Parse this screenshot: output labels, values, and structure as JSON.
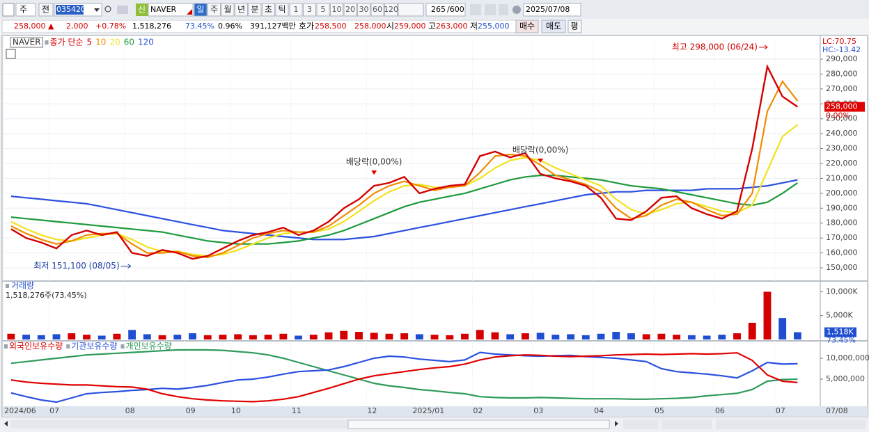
{
  "toolbar": {
    "period": "주",
    "prev": "전",
    "code": "035420",
    "name": "NAVER",
    "new_badge": "신",
    "intervals": [
      "일",
      "주",
      "월",
      "년",
      "분",
      "초",
      "틱"
    ],
    "minutes": [
      "1",
      "3",
      "5",
      "10",
      "20",
      "30",
      "60",
      "120"
    ],
    "count": "265",
    "max_count": "/600",
    "date": "2025/07/08"
  },
  "quote": {
    "price": "258,000 ▲",
    "change": "2,000",
    "change_pct": "+0.78%",
    "volume": "1,518,276",
    "volume_ratio": "73.45%",
    "turnover": "0.96%",
    "amount": "391,127백만",
    "ask_label": "호가",
    "ask": "258,500",
    "bid": "258,000",
    "open_label": "시",
    "open": "259,000",
    "high_label": "고",
    "high": "263,000",
    "low_label": "저",
    "low": "255,000",
    "buy": "매수",
    "sell": "매도",
    "avg": "평"
  },
  "chart_data": [
    {
      "type": "line",
      "name": "NAVER",
      "legend_prefix": "종가 단순",
      "series": [
        {
          "name": "5",
          "color": "#d40000",
          "values": [
            176000,
            170000,
            167000,
            163000,
            172000,
            175000,
            172000,
            174000,
            160000,
            158000,
            162000,
            160000,
            156000,
            158000,
            163000,
            168000,
            172000,
            174000,
            177000,
            172000,
            175000,
            181000,
            190000,
            196000,
            205000,
            207000,
            211000,
            200000,
            203000,
            205000,
            206000,
            225000,
            228000,
            224000,
            227000,
            213000,
            210000,
            208000,
            205000,
            197000,
            183000,
            182000,
            188000,
            197000,
            198000,
            190000,
            186000,
            183000,
            188000,
            230000,
            285000,
            265000,
            258000
          ]
        },
        {
          "name": "10",
          "color": "#f08c00",
          "values": [
            178000,
            173000,
            169000,
            166000,
            168000,
            172000,
            173000,
            173000,
            166000,
            160000,
            160000,
            161000,
            158000,
            157000,
            160000,
            165000,
            170000,
            173000,
            175000,
            174000,
            174000,
            178000,
            185000,
            192000,
            200000,
            205000,
            208000,
            205000,
            202000,
            204000,
            205000,
            214000,
            225000,
            226000,
            225000,
            219000,
            212000,
            209000,
            206000,
            201000,
            190000,
            183000,
            185000,
            192000,
            196000,
            194000,
            189000,
            185000,
            186000,
            200000,
            255000,
            275000,
            262000
          ]
        },
        {
          "name": "20",
          "color": "#f2e21a",
          "values": [
            181000,
            176000,
            172000,
            169000,
            168000,
            170000,
            172000,
            173000,
            169000,
            164000,
            161000,
            161000,
            159000,
            158000,
            159000,
            162000,
            166000,
            170000,
            173000,
            174000,
            174000,
            176000,
            181000,
            188000,
            195000,
            201000,
            205000,
            206000,
            204000,
            204000,
            205000,
            210000,
            217000,
            222000,
            224000,
            222000,
            217000,
            213000,
            209000,
            205000,
            196000,
            189000,
            186000,
            189000,
            193000,
            194000,
            191000,
            188000,
            187000,
            192000,
            215000,
            238000,
            246000
          ]
        },
        {
          "name": "60",
          "color": "#1e9a3c",
          "values": [
            184000,
            183000,
            182000,
            181000,
            180000,
            179000,
            178000,
            177000,
            176000,
            175000,
            174000,
            172000,
            170000,
            168000,
            167000,
            166000,
            166000,
            166000,
            167000,
            168000,
            170000,
            172000,
            175000,
            179000,
            183000,
            187000,
            191000,
            194000,
            196000,
            198000,
            200000,
            203000,
            206000,
            209000,
            211000,
            212000,
            212000,
            211000,
            210000,
            209000,
            207000,
            205000,
            204000,
            203000,
            201000,
            199000,
            197000,
            195000,
            193000,
            192000,
            194000,
            200000,
            207000
          ]
        },
        {
          "name": "120",
          "color": "#2a50e0",
          "values": [
            198000,
            197000,
            196000,
            195000,
            194000,
            193000,
            191000,
            189000,
            187000,
            185000,
            183000,
            181000,
            179000,
            177000,
            175000,
            174000,
            173000,
            172000,
            171000,
            170000,
            169000,
            169000,
            169000,
            170000,
            171000,
            173000,
            175000,
            177000,
            179000,
            181000,
            183000,
            185000,
            187000,
            189000,
            191000,
            193000,
            195000,
            197000,
            199000,
            200000,
            201000,
            201000,
            202000,
            202000,
            202000,
            202000,
            203000,
            203000,
            203000,
            204000,
            205000,
            207000,
            209000
          ]
        }
      ],
      "ylim": [
        141600,
        304000
      ],
      "yticks": [
        {
          "value": 150000,
          "label": "150,000"
        },
        {
          "value": 160000,
          "label": "160,000"
        },
        {
          "value": 170000,
          "label": "170,000"
        },
        {
          "value": 180000,
          "label": "180,000"
        },
        {
          "value": 190000,
          "label": "190,000"
        },
        {
          "value": 200000,
          "label": "200,000"
        },
        {
          "value": 210000,
          "label": "210,000"
        },
        {
          "value": 220000,
          "label": "220,000"
        },
        {
          "value": 230000,
          "label": "230,000"
        },
        {
          "value": 240000,
          "label": "240,000"
        },
        {
          "value": 250000,
          "label": "250,000"
        },
        {
          "value": 260000,
          "label": "260,000"
        },
        {
          "value": 270000,
          "label": "270,000"
        },
        {
          "value": 280000,
          "label": "280,000"
        },
        {
          "value": 290000,
          "label": "290,000"
        }
      ],
      "grid": true,
      "high_annotation": {
        "text": "최고 298,000 (06/24)",
        "x": 50,
        "value": 298000
      },
      "low_annotation": {
        "text": "최저 151,100 (08/05)",
        "x": 8,
        "value": 151100
      },
      "events": [
        {
          "text": "배당락(0,00%)",
          "x": 24
        },
        {
          "text": "배당락(0,00%)",
          "x": 35
        }
      ],
      "indicator_labels": [
        "LC:70.75",
        "HC:-13.42"
      ],
      "last_label": "258,000",
      "last_pct": "0.00%"
    },
    {
      "type": "bar",
      "title": "거래량",
      "subtitle": "1,518,276주(73.45%)",
      "up_color": "#d40000",
      "down_color": "#1f4fd0",
      "values": [
        1200000,
        1000000,
        900000,
        1100000,
        1300000,
        1000000,
        800000,
        1200000,
        2000000,
        1100000,
        900000,
        1000000,
        1300000,
        900000,
        1000000,
        1100000,
        900000,
        1000000,
        1200000,
        800000,
        1000000,
        1500000,
        1800000,
        1600000,
        1400000,
        1200000,
        1300000,
        1100000,
        1000000,
        900000,
        1200000,
        2000000,
        1500000,
        1100000,
        1300000,
        1400000,
        1000000,
        1100000,
        900000,
        1200000,
        1600000,
        1300000,
        1100000,
        1200000,
        1000000,
        900000,
        800000,
        1000000,
        1300000,
        3500000,
        10000000,
        4500000,
        1518276
      ],
      "ylim": [
        0,
        12100000
      ],
      "yticks": [
        {
          "value": 5000000,
          "label": "5,000K"
        },
        {
          "value": 10000000,
          "label": "10,000K"
        }
      ],
      "last_label": "1,518K",
      "last_pct": "73.45%"
    },
    {
      "type": "line",
      "series": [
        {
          "name": "외국인보유수량",
          "color": "#e00000",
          "values": [
            4800000,
            4300000,
            4000000,
            3800000,
            3600000,
            3600000,
            3400000,
            3200000,
            3100000,
            2600000,
            1500000,
            800000,
            300000,
            0,
            -200000,
            -300000,
            -400000,
            -200000,
            200000,
            800000,
            1800000,
            2800000,
            3900000,
            5000000,
            5800000,
            6300000,
            6800000,
            7300000,
            7700000,
            8000000,
            8600000,
            9600000,
            10300000,
            10600000,
            10800000,
            10700000,
            10500000,
            10400000,
            10500000,
            10600000,
            10800000,
            10900000,
            11000000,
            10900000,
            11000000,
            11100000,
            11000000,
            11100000,
            11300000,
            9500000,
            6000000,
            4500000,
            4200000
          ]
        },
        {
          "name": "기관보유수량",
          "color": "#2a50e0",
          "values": [
            1700000,
            800000,
            0,
            -500000,
            500000,
            1500000,
            1800000,
            2000000,
            2300000,
            2500000,
            2800000,
            2600000,
            3000000,
            3500000,
            4200000,
            4800000,
            5000000,
            5500000,
            6200000,
            6800000,
            7000000,
            7200000,
            8000000,
            9000000,
            10000000,
            10500000,
            10300000,
            9800000,
            9500000,
            9200000,
            9600000,
            11400000,
            11000000,
            10800000,
            10600000,
            10500000,
            10600000,
            10700000,
            10400000,
            10200000,
            10000000,
            9600000,
            9200000,
            7500000,
            6800000,
            6500000,
            6200000,
            5800000,
            5300000,
            7000000,
            9000000,
            8600000,
            8700000
          ]
        },
        {
          "name": "개인보유수량",
          "color": "#2e9a5a",
          "values": [
            8800000,
            9200000,
            9600000,
            10000000,
            10400000,
            10800000,
            11000000,
            11200000,
            11400000,
            11600000,
            11800000,
            12000000,
            12000000,
            12000000,
            11900000,
            11600000,
            11300000,
            10800000,
            10000000,
            9000000,
            8000000,
            7000000,
            6000000,
            5000000,
            4000000,
            3400000,
            3000000,
            2500000,
            2200000,
            1800000,
            1500000,
            800000,
            600000,
            500000,
            500000,
            600000,
            500000,
            400000,
            300000,
            300000,
            300000,
            200000,
            200000,
            300000,
            400000,
            600000,
            1000000,
            1300000,
            1600000,
            2500000,
            4500000,
            4900000,
            5000000
          ]
        }
      ],
      "ylim": [
        -1330000,
        13830000
      ],
      "yticks": [
        {
          "value": 5000000,
          "label": "5,000,000"
        },
        {
          "value": 10000000,
          "label": "10,000,000"
        }
      ],
      "categories": [
        "2024/06",
        null,
        null,
        "07",
        null,
        null,
        null,
        null,
        "08",
        null,
        null,
        null,
        "09",
        null,
        null,
        "10",
        null,
        null,
        null,
        "11",
        null,
        null,
        null,
        null,
        "12",
        null,
        null,
        "2025/01",
        null,
        null,
        null,
        "02",
        null,
        null,
        null,
        "03",
        null,
        null,
        null,
        "04",
        null,
        null,
        null,
        "05",
        null,
        null,
        null,
        "06",
        null,
        null,
        null,
        "07",
        null
      ],
      "x_end_label": "07/08"
    }
  ]
}
